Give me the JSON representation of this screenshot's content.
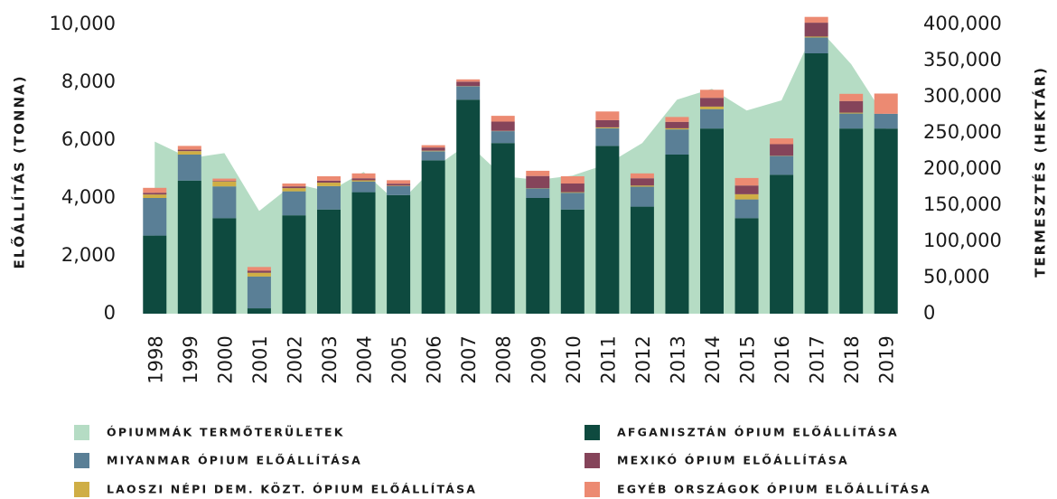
{
  "chart_data": {
    "type": "bar",
    "stacked": true,
    "ylabel": "ELŐÁLLÍTÁS (TONNA)",
    "y2label": "TERMESZTÉS (HEKTÁR)",
    "categories": [
      "1998",
      "1999",
      "2000",
      "2001",
      "2002",
      "2003",
      "2004",
      "2005",
      "2006",
      "2007",
      "2008",
      "2009",
      "2010",
      "2011",
      "2012",
      "2013",
      "2014",
      "2015",
      "2016",
      "2017",
      "2018",
      "2019"
    ],
    "series": [
      {
        "name": "ÓPIUMMÁK TERMŐTERÜLETEK",
        "type": "area",
        "axis": "y2",
        "color": "#b5dcc4",
        "values": [
          238000,
          215000,
          222000,
          142000,
          180000,
          169000,
          196000,
          152000,
          201000,
          235000,
          190000,
          185000,
          191000,
          207000,
          236000,
          296000,
          311000,
          281000,
          295000,
          398000,
          345000,
          270000
        ]
      },
      {
        "name": "AFGANISZTÁN ÓPIUM ELŐÁLLÍTÁSA",
        "color": "#0e4a3f",
        "values": [
          2700,
          4600,
          3300,
          185,
          3400,
          3600,
          4200,
          4100,
          5300,
          7400,
          5900,
          4000,
          3600,
          5800,
          3700,
          5500,
          6400,
          3300,
          4800,
          9000,
          6400,
          6400
        ]
      },
      {
        "name": "MIYANMAR ÓPIUM ELŐÁLLÍTÁSA",
        "color": "#5a7f96",
        "values": [
          1300,
          900,
          1100,
          1100,
          830,
          810,
          370,
          310,
          315,
          460,
          410,
          330,
          580,
          610,
          690,
          870,
          670,
          650,
          650,
          550,
          520,
          510
        ]
      },
      {
        "name": "LAOSZI NÉPI DEM. KÖZT. ÓPIUM ELŐÁLLÍTÁSA",
        "color": "#cfae45",
        "values": [
          120,
          120,
          170,
          130,
          110,
          120,
          40,
          15,
          20,
          10,
          10,
          10,
          20,
          30,
          40,
          40,
          90,
          180,
          10,
          30,
          30,
          0
        ]
      },
      {
        "name": "MEXIKÓ ÓPIUM ELŐÁLLÍTÁSA",
        "color": "#85445a",
        "values": [
          60,
          50,
          20,
          70,
          60,
          70,
          70,
          70,
          110,
          150,
          320,
          420,
          300,
          250,
          250,
          220,
          300,
          300,
          400,
          480,
          400,
          0
        ]
      },
      {
        "name": "EGYÉB ORSZÁGOK ÓPIUM ELŐÁLLÍTÁSA",
        "color": "#ec8a72",
        "values": [
          170,
          130,
          80,
          130,
          100,
          150,
          170,
          120,
          80,
          80,
          200,
          180,
          250,
          300,
          170,
          170,
          280,
          260,
          200,
          200,
          250,
          700
        ]
      }
    ],
    "ylim": [
      0,
      10000
    ],
    "yticks": [
      0,
      {
        "value": 2000,
        "label": "2,000"
      },
      {
        "value": 4000,
        "label": "4,000"
      },
      {
        "value": 6000,
        "label": "6,000"
      },
      {
        "value": 8000,
        "label": "8,000"
      },
      {
        "value": 10000,
        "label": "10,000"
      }
    ],
    "y2lim": [
      0,
      400000
    ],
    "y2ticks": [
      0,
      {
        "value": 50000,
        "label": "50,000"
      },
      {
        "value": 100000,
        "label": "100,000"
      },
      {
        "value": 150000,
        "label": "150,000"
      },
      {
        "value": 200000,
        "label": "200,000"
      },
      {
        "value": 250000,
        "label": "250,000"
      },
      {
        "value": 300000,
        "label": "300,000"
      },
      {
        "value": 350000,
        "label": "350,000"
      },
      {
        "value": 400000,
        "label": "400,000"
      }
    ],
    "grid": false
  }
}
